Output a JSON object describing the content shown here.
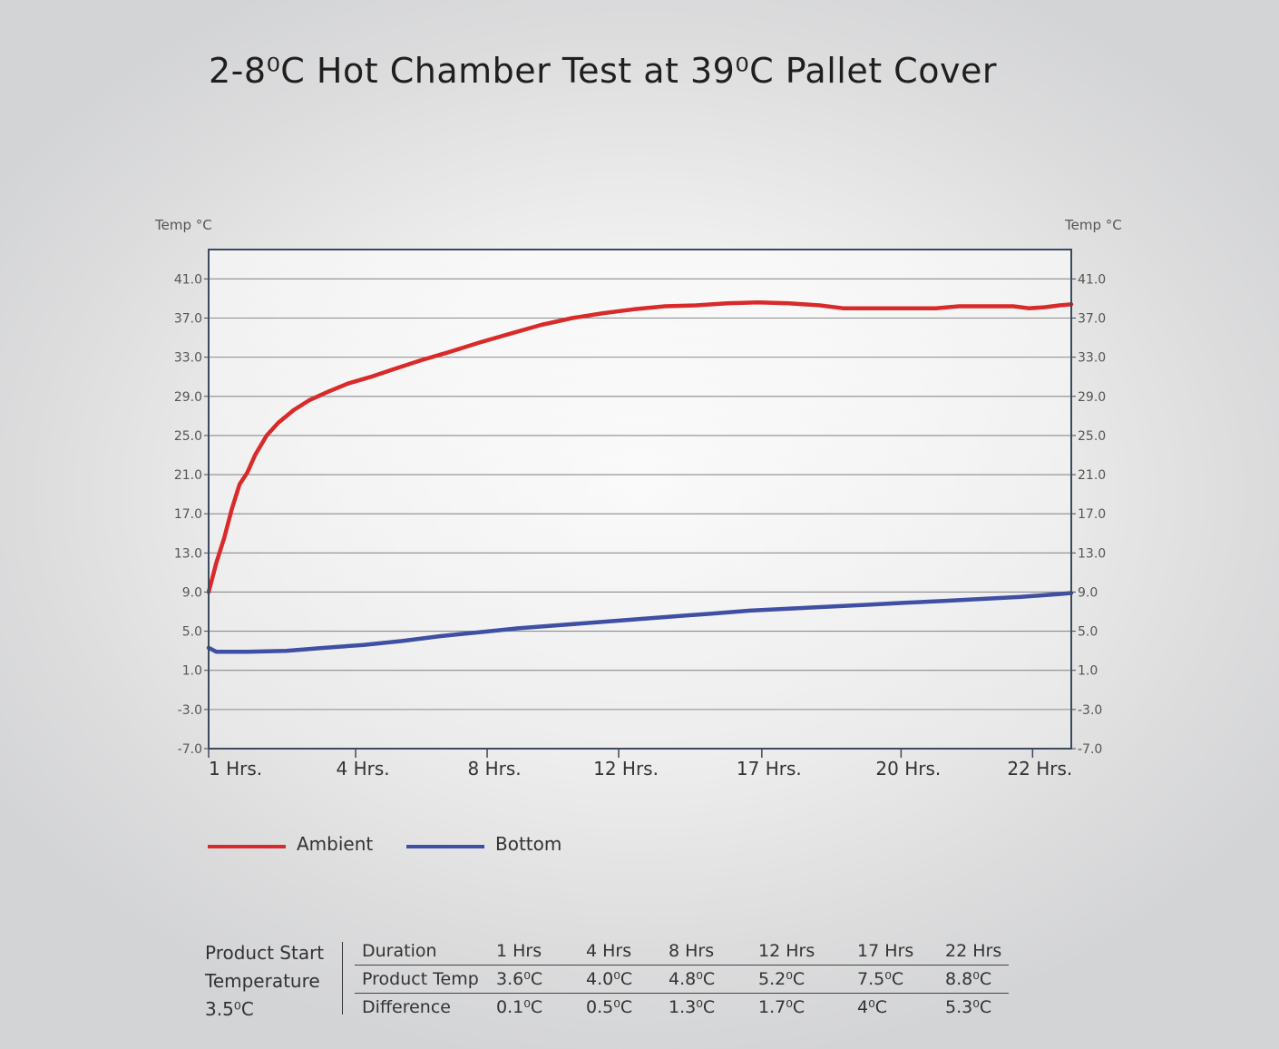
{
  "title": "2-8⁰C Hot Chamber Test at 39⁰C Pallet Cover",
  "chart_data": {
    "type": "line",
    "y_axis_title_left": "Temp °C",
    "y_axis_title_right": "Temp °C",
    "ylim": [
      -7.0,
      44.0
    ],
    "y_ticks": [
      "-7.0",
      "-3.0",
      "1.0",
      "5.0",
      "9.0",
      "13.0",
      "17.0",
      "21.0",
      "25.0",
      "29.0",
      "33.0",
      "37.0",
      "41.0"
    ],
    "xlim": [
      1,
      23.3
    ],
    "x_ticks": [
      {
        "x": 1,
        "label": "1 Hrs."
      },
      {
        "x": 4.8,
        "label": "4 Hrs."
      },
      {
        "x": 8.2,
        "label": "8 Hrs."
      },
      {
        "x": 11.6,
        "label": "12 Hrs."
      },
      {
        "x": 15.3,
        "label": "17 Hrs."
      },
      {
        "x": 18.9,
        "label": "20 Hrs."
      },
      {
        "x": 22.3,
        "label": "22 Hrs."
      }
    ],
    "grid": true,
    "legend_position": "bottom-left",
    "series": [
      {
        "name": "Ambient",
        "color": "#d92a2a",
        "points": [
          [
            1.0,
            9.0
          ],
          [
            1.1,
            10.5
          ],
          [
            1.2,
            12.0
          ],
          [
            1.4,
            14.5
          ],
          [
            1.6,
            17.5
          ],
          [
            1.8,
            20.0
          ],
          [
            2.0,
            21.2
          ],
          [
            2.2,
            23.0
          ],
          [
            2.5,
            25.0
          ],
          [
            2.8,
            26.3
          ],
          [
            3.2,
            27.6
          ],
          [
            3.6,
            28.6
          ],
          [
            4.1,
            29.5
          ],
          [
            4.6,
            30.3
          ],
          [
            5.2,
            31.0
          ],
          [
            5.8,
            31.8
          ],
          [
            6.5,
            32.7
          ],
          [
            7.2,
            33.5
          ],
          [
            8.0,
            34.5
          ],
          [
            8.8,
            35.4
          ],
          [
            9.6,
            36.3
          ],
          [
            10.4,
            37.0
          ],
          [
            11.2,
            37.5
          ],
          [
            12.0,
            37.9
          ],
          [
            12.8,
            38.2
          ],
          [
            13.6,
            38.3
          ],
          [
            14.4,
            38.5
          ],
          [
            15.2,
            38.6
          ],
          [
            16.0,
            38.5
          ],
          [
            16.8,
            38.3
          ],
          [
            17.4,
            38.0
          ],
          [
            18.2,
            38.0
          ],
          [
            19.0,
            38.0
          ],
          [
            19.8,
            38.0
          ],
          [
            20.4,
            38.2
          ],
          [
            21.2,
            38.2
          ],
          [
            21.8,
            38.2
          ],
          [
            22.2,
            38.0
          ],
          [
            22.6,
            38.1
          ],
          [
            23.0,
            38.3
          ],
          [
            23.3,
            38.4
          ]
        ]
      },
      {
        "name": "Bottom",
        "color": "#3f4fa3",
        "points": [
          [
            1.0,
            3.3
          ],
          [
            1.2,
            2.9
          ],
          [
            2.0,
            2.9
          ],
          [
            3.0,
            3.0
          ],
          [
            4.0,
            3.3
          ],
          [
            5.0,
            3.6
          ],
          [
            6.0,
            4.0
          ],
          [
            7.0,
            4.5
          ],
          [
            8.0,
            4.9
          ],
          [
            9.0,
            5.3
          ],
          [
            10.0,
            5.6
          ],
          [
            11.0,
            5.9
          ],
          [
            12.0,
            6.2
          ],
          [
            13.0,
            6.5
          ],
          [
            14.0,
            6.8
          ],
          [
            15.0,
            7.1
          ],
          [
            16.0,
            7.3
          ],
          [
            17.0,
            7.5
          ],
          [
            18.0,
            7.7
          ],
          [
            19.0,
            7.9
          ],
          [
            20.0,
            8.1
          ],
          [
            21.0,
            8.3
          ],
          [
            22.0,
            8.5
          ],
          [
            23.0,
            8.8
          ],
          [
            23.3,
            8.9
          ]
        ]
      }
    ]
  },
  "legend": [
    {
      "label": "Ambient",
      "color": "#d92a2a"
    },
    {
      "label": "Bottom",
      "color": "#3f4fa3"
    }
  ],
  "product_start": {
    "line1": "Product Start",
    "line2": "Temperature",
    "line3": "3.5⁰C"
  },
  "results_table": {
    "rows": [
      [
        "Duration",
        "1 Hrs",
        "4 Hrs",
        "8 Hrs",
        "12 Hrs",
        "17 Hrs",
        "22 Hrs"
      ],
      [
        "Product Temp",
        "3.6⁰C",
        "4.0⁰C",
        "4.8⁰C",
        "5.2⁰C",
        "7.5⁰C",
        "8.8⁰C"
      ],
      [
        "Difference",
        "0.1⁰C",
        "0.5⁰C",
        "1.3⁰C",
        "1.7⁰C",
        "4⁰C",
        "5.3⁰C"
      ]
    ]
  }
}
